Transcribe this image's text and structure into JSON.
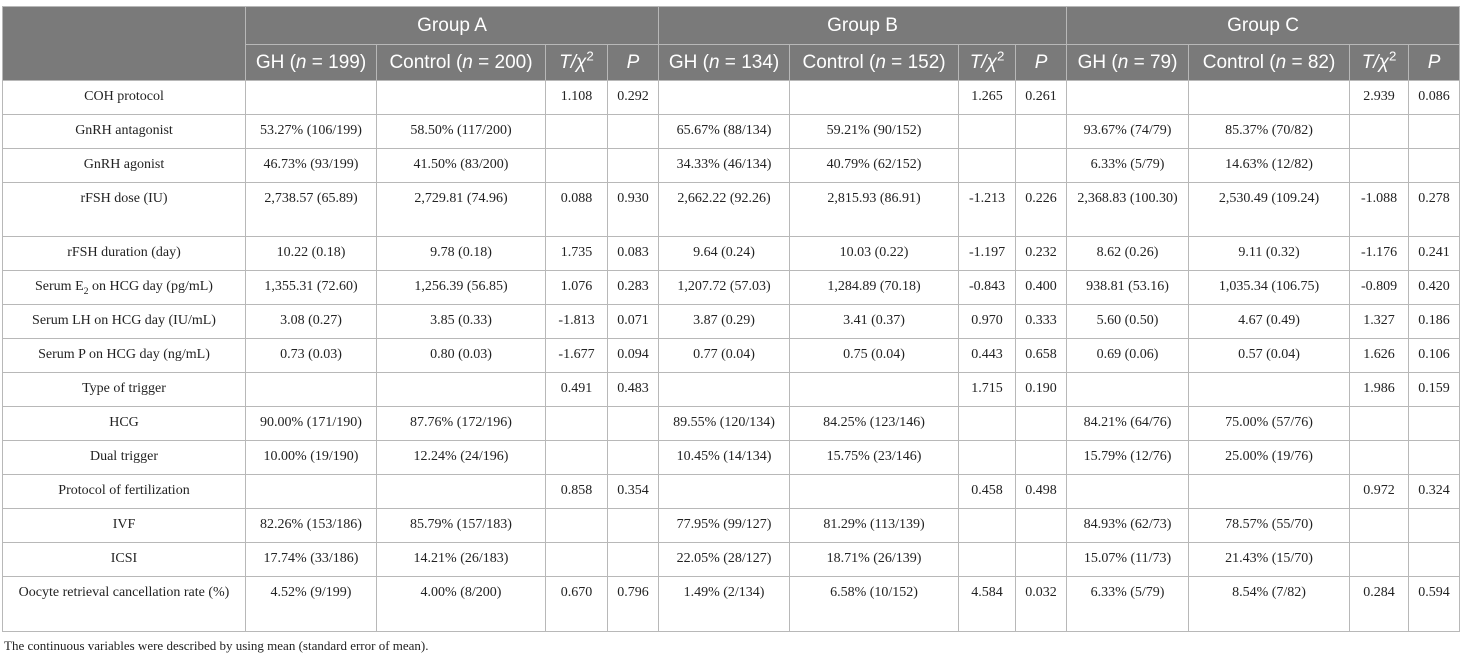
{
  "groups": [
    "Group A",
    "Group B",
    "Group C"
  ],
  "subheaders": [
    {
      "gh": "GH",
      "gh_n": "199",
      "ctrl": "Control",
      "ctrl_n": "200"
    },
    {
      "gh": "GH",
      "gh_n": "134",
      "ctrl": "Control",
      "ctrl_n": "152"
    },
    {
      "gh": "GH",
      "gh_n": "79",
      "ctrl": "Control",
      "ctrl_n": "82"
    }
  ],
  "stat_label": "T/χ",
  "stat_sup": "2",
  "p_label": "P",
  "n_label": "n",
  "rows": [
    {
      "label": "COH protocol",
      "cells": [
        "",
        "",
        "1.108",
        "0.292",
        "",
        "",
        "1.265",
        "0.261",
        "",
        "",
        "2.939",
        "0.086"
      ]
    },
    {
      "label": "GnRH antagonist",
      "cells": [
        "53.27% (106/199)",
        "58.50% (117/200)",
        "",
        "",
        "65.67% (88/134)",
        "59.21% (90/152)",
        "",
        "",
        "93.67% (74/79)",
        "85.37% (70/82)",
        "",
        ""
      ]
    },
    {
      "label": "GnRH agonist",
      "cells": [
        "46.73% (93/199)",
        "41.50% (83/200)",
        "",
        "",
        "34.33% (46/134)",
        "40.79% (62/152)",
        "",
        "",
        "6.33% (5/79)",
        "14.63% (12/82)",
        "",
        ""
      ]
    },
    {
      "label": "rFSH dose (IU)",
      "cells": [
        "2,738.57 (65.89)",
        "2,729.81 (74.96)",
        "0.088",
        "0.930",
        "2,662.22 (92.26)",
        "2,815.93 (86.91)",
        "-1.213",
        "0.226",
        "2,368.83 (100.30)",
        "2,530.49 (109.24)",
        "-1.088",
        "0.278"
      ]
    },
    {
      "label": "rFSH duration (day)",
      "cells": [
        "10.22 (0.18)",
        "9.78 (0.18)",
        "1.735",
        "0.083",
        "9.64 (0.24)",
        "10.03 (0.22)",
        "-1.197",
        "0.232",
        "8.62 (0.26)",
        "9.11 (0.32)",
        "-1.176",
        "0.241"
      ]
    },
    {
      "label_pre": "Serum E",
      "label_sub": "2",
      "label_post": " on HCG day (pg/mL)",
      "cells": [
        "1,355.31 (72.60)",
        "1,256.39 (56.85)",
        "1.076",
        "0.283",
        "1,207.72 (57.03)",
        "1,284.89 (70.18)",
        "-0.843",
        "0.400",
        "938.81 (53.16)",
        "1,035.34 (106.75)",
        "-0.809",
        "0.420"
      ]
    },
    {
      "label": "Serum LH on HCG day (IU/mL)",
      "cells": [
        "3.08 (0.27)",
        "3.85 (0.33)",
        "-1.813",
        "0.071",
        "3.87 (0.29)",
        "3.41 (0.37)",
        "0.970",
        "0.333",
        "5.60 (0.50)",
        "4.67 (0.49)",
        "1.327",
        "0.186"
      ]
    },
    {
      "label": "Serum P on HCG day (ng/mL)",
      "cells": [
        "0.73 (0.03)",
        "0.80 (0.03)",
        "-1.677",
        "0.094",
        "0.77 (0.04)",
        "0.75 (0.04)",
        "0.443",
        "0.658",
        "0.69 (0.06)",
        "0.57 (0.04)",
        "1.626",
        "0.106"
      ]
    },
    {
      "label": "Type of trigger",
      "cells": [
        "",
        "",
        "0.491",
        "0.483",
        "",
        "",
        "1.715",
        "0.190",
        "",
        "",
        "1.986",
        "0.159"
      ]
    },
    {
      "label": "HCG",
      "cells": [
        "90.00% (171/190)",
        "87.76% (172/196)",
        "",
        "",
        "89.55% (120/134)",
        "84.25% (123/146)",
        "",
        "",
        "84.21% (64/76)",
        "75.00% (57/76)",
        "",
        ""
      ]
    },
    {
      "label": "Dual trigger",
      "cells": [
        "10.00% (19/190)",
        "12.24% (24/196)",
        "",
        "",
        "10.45% (14/134)",
        "15.75% (23/146)",
        "",
        "",
        "15.79% (12/76)",
        "25.00% (19/76)",
        "",
        ""
      ]
    },
    {
      "label": "Protocol of fertilization",
      "cells": [
        "",
        "",
        "0.858",
        "0.354",
        "",
        "",
        "0.458",
        "0.498",
        "",
        "",
        "0.972",
        "0.324"
      ]
    },
    {
      "label": "IVF",
      "cells": [
        "82.26% (153/186)",
        "85.79% (157/183)",
        "",
        "",
        "77.95% (99/127)",
        "81.29% (113/139)",
        "",
        "",
        "84.93% (62/73)",
        "78.57% (55/70)",
        "",
        ""
      ]
    },
    {
      "label": "ICSI",
      "cells": [
        "17.74% (33/186)",
        "14.21% (26/183)",
        "",
        "",
        "22.05% (28/127)",
        "18.71% (26/139)",
        "",
        "",
        "15.07% (11/73)",
        "21.43% (15/70)",
        "",
        ""
      ]
    },
    {
      "label": "Oocyte retrieval cancellation rate (%)",
      "cells": [
        "4.52% (9/199)",
        "4.00% (8/200)",
        "0.670",
        "0.796",
        "1.49% (2/134)",
        "6.58% (10/152)",
        "4.584",
        "0.032",
        "6.33% (5/79)",
        "8.54% (7/82)",
        "0.284",
        "0.594"
      ]
    }
  ],
  "footnote": "The continuous variables were described by using mean (standard error of mean)."
}
